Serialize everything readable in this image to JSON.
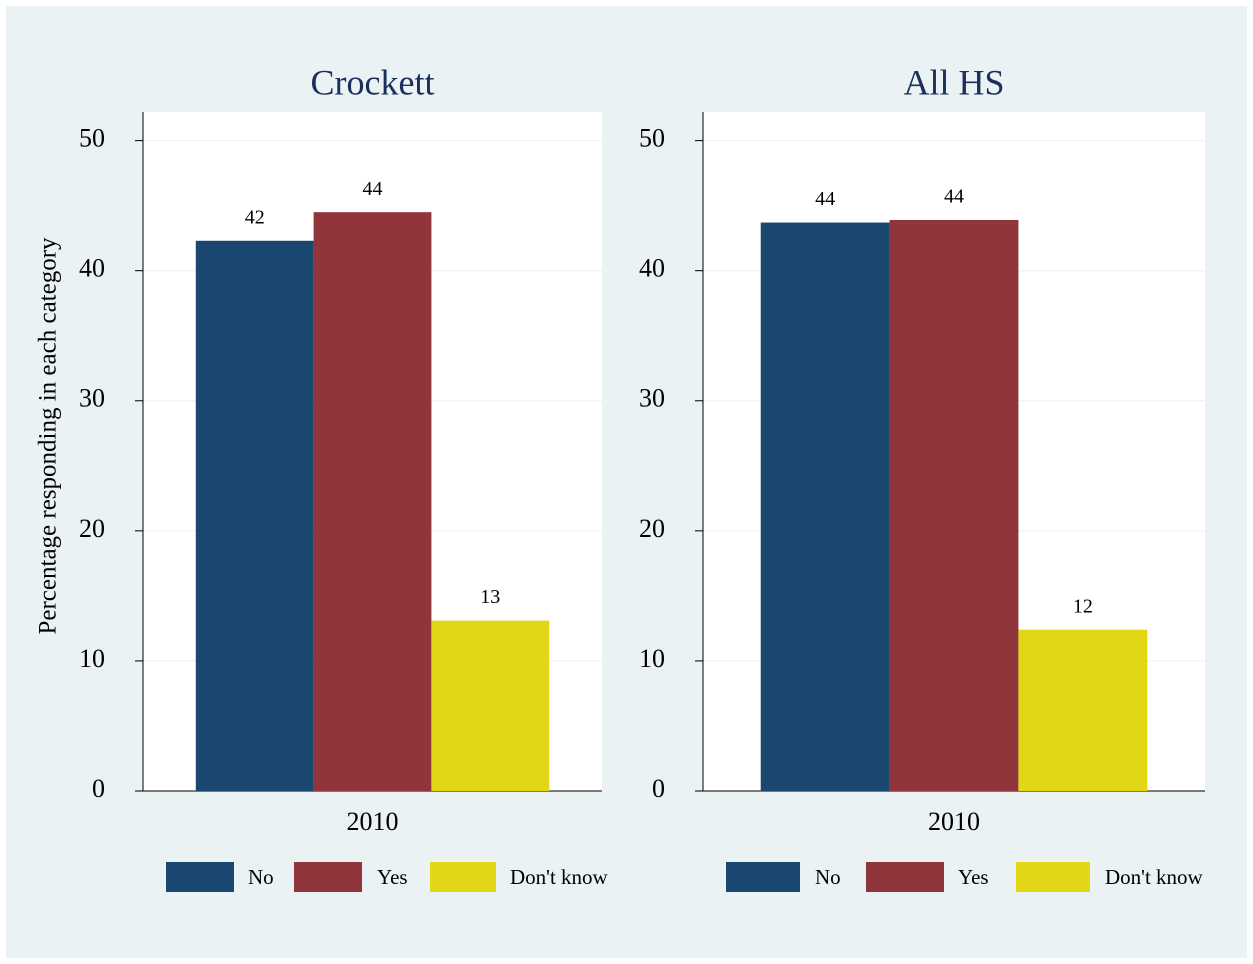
{
  "chart_data": [
    {
      "type": "bar",
      "title": "Crockett",
      "y_label": "Percentage responding in each category",
      "categories": [
        "2010"
      ],
      "series": [
        {
          "name": "No",
          "color": "#1a476f",
          "values": [
            42.3
          ],
          "value_labels": [
            "42"
          ]
        },
        {
          "name": "Yes",
          "color": "#90353b",
          "values": [
            44.5
          ],
          "value_labels": [
            "44"
          ]
        },
        {
          "name": "Don't know",
          "color": "#e1d716",
          "values": [
            13.1
          ],
          "value_labels": [
            "13"
          ]
        }
      ],
      "ylim": [
        0,
        52.2
      ],
      "yticks": [
        0,
        10,
        20,
        30,
        40,
        50
      ],
      "grid": true
    },
    {
      "type": "bar",
      "title": "All HS",
      "categories": [
        "2010"
      ],
      "series": [
        {
          "name": "No",
          "color": "#1a476f",
          "values": [
            43.7
          ],
          "value_labels": [
            "44"
          ]
        },
        {
          "name": "Yes",
          "color": "#90353b",
          "values": [
            43.9
          ],
          "value_labels": [
            "44"
          ]
        },
        {
          "name": "Don't know",
          "color": "#e1d716",
          "values": [
            12.4
          ],
          "value_labels": [
            "12"
          ]
        }
      ],
      "ylim": [
        0,
        52.2
      ],
      "yticks": [
        0,
        10,
        20,
        30,
        40,
        50
      ],
      "grid": true
    }
  ]
}
